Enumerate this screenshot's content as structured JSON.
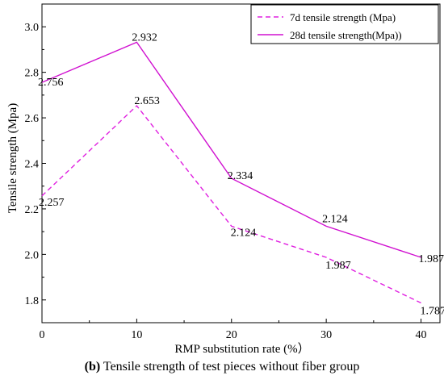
{
  "caption": {
    "prefix": "(b)",
    "text": "Tensile strength of test pieces without fiber group"
  },
  "chart_data": {
    "type": "line",
    "xlabel": "RMP substitution rate (%）",
    "ylabel": "Tensile strength (Mpa)",
    "x": [
      0,
      10,
      20,
      30,
      40
    ],
    "xlim": [
      0,
      42
    ],
    "ylim": [
      1.7,
      3.1
    ],
    "xticks": [
      0,
      10,
      20,
      30,
      40
    ],
    "yticks": [
      1.8,
      2.0,
      2.2,
      2.4,
      2.6,
      2.8,
      3.0
    ],
    "ytick_labels": [
      "1.8",
      "2.0",
      "2.2",
      "2.4",
      "2.6",
      "2.8",
      "3.0"
    ],
    "grid": false,
    "legend_position": "top-right",
    "series": [
      {
        "name": "7d tensile strength (Mpa)",
        "values": [
          2.257,
          2.653,
          2.124,
          1.987,
          1.787
        ],
        "labels": [
          "2.257",
          "2.653",
          "2.124",
          "1.987",
          "1.787"
        ],
        "style": "dashed",
        "color": "#e020e0"
      },
      {
        "name": "28d tensile strength(Mpa))",
        "values": [
          2.756,
          2.932,
          2.334,
          2.124,
          1.987
        ],
        "labels": [
          "2.756",
          "2.932",
          "2.334",
          "2.124",
          "1.987"
        ],
        "style": "solid",
        "color": "#d010d0"
      }
    ]
  }
}
